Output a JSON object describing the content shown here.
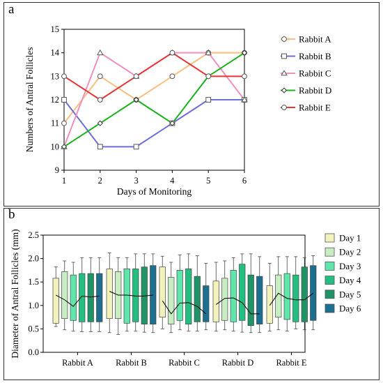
{
  "chart_data": [
    {
      "type": "line",
      "panel_label": "a",
      "xlabel": "Days of Monitoring",
      "ylabel": "Numbers of Antral Follicles",
      "x": [
        1,
        2,
        3,
        4,
        5,
        6
      ],
      "ylim": [
        9,
        15
      ],
      "yticks": [
        9,
        10,
        11,
        12,
        13,
        14,
        15
      ],
      "grid": false,
      "legend_position": "right",
      "series": [
        {
          "name": "Rabbit A",
          "color": "#f7bf80",
          "marker": "circle",
          "values": [
            11,
            13,
            12,
            13,
            14,
            14
          ]
        },
        {
          "name": "Rabbit B",
          "color": "#6d6ddb",
          "marker": "square",
          "values": [
            12,
            10,
            10,
            11,
            12,
            12
          ]
        },
        {
          "name": "Rabbit C",
          "color": "#f08fbf",
          "marker": "triangle",
          "values": [
            10,
            14,
            13,
            14,
            14,
            12
          ]
        },
        {
          "name": "Rabbit D",
          "color": "#19b319",
          "marker": "diamond",
          "values": [
            10,
            11,
            12,
            11,
            13,
            14
          ]
        },
        {
          "name": "Rabbit E",
          "color": "#e63535",
          "marker": "circle",
          "values": [
            13,
            12,
            13,
            14,
            13,
            13
          ]
        }
      ]
    },
    {
      "type": "box",
      "panel_label": "b",
      "xlabel": "",
      "ylabel": "Diameter of Antral Follicles (mm)",
      "categories": [
        "Rabbit A",
        "Rabbit B",
        "Rabbit C",
        "Rabbit D",
        "Rabbit E"
      ],
      "ylim": [
        0,
        2.5
      ],
      "yticks": [
        "0.0",
        "0.5",
        "1.0",
        "1.5",
        "2.0",
        "2.5"
      ],
      "grid": false,
      "legend_position": "right",
      "series": [
        {
          "name": "Day 1",
          "color": "#f2f2bd"
        },
        {
          "name": "Day 2",
          "color": "#c9edc2"
        },
        {
          "name": "Day 3",
          "color": "#5fe6ab"
        },
        {
          "name": "Day 4",
          "color": "#23bf80"
        },
        {
          "name": "Day 5",
          "color": "#1f9466"
        },
        {
          "name": "Day 6",
          "color": "#1c6f8f"
        }
      ],
      "boxes": [
        [
          [
            0.55,
            0.62,
            1.22,
            1.58,
            1.82
          ],
          [
            0.48,
            0.72,
            1.12,
            1.72,
            1.95
          ],
          [
            0.45,
            0.68,
            0.98,
            1.65,
            1.92
          ],
          [
            0.44,
            0.65,
            1.2,
            1.68,
            2.02
          ],
          [
            0.44,
            0.65,
            1.18,
            1.68,
            2.02
          ],
          [
            0.44,
            0.65,
            1.2,
            1.68,
            2.02
          ]
        ],
        [
          [
            0.42,
            0.72,
            1.3,
            1.78,
            2.12
          ],
          [
            0.38,
            0.72,
            1.22,
            1.72,
            2.02
          ],
          [
            0.45,
            0.62,
            1.22,
            1.78,
            2.02
          ],
          [
            0.45,
            0.65,
            1.2,
            1.78,
            2.1
          ],
          [
            0.43,
            0.6,
            1.2,
            1.82,
            2.1
          ],
          [
            0.42,
            0.6,
            1.22,
            1.85,
            2.1
          ]
        ],
        [
          [
            0.5,
            0.75,
            1.1,
            1.82,
            2.05
          ],
          [
            0.42,
            0.6,
            0.82,
            1.6,
            1.92
          ],
          [
            0.48,
            0.68,
            1.05,
            1.75,
            2.08
          ],
          [
            0.45,
            0.6,
            1.06,
            1.78,
            2.1
          ],
          [
            0.45,
            0.65,
            0.98,
            1.62,
            2.06
          ],
          [
            0.48,
            0.65,
            0.82,
            1.42,
            1.9
          ]
        ],
        [
          [
            0.45,
            0.65,
            1.02,
            1.52,
            1.92
          ],
          [
            0.48,
            0.68,
            1.15,
            1.58,
            1.95
          ],
          [
            0.45,
            0.65,
            1.16,
            1.75,
            2.02
          ],
          [
            0.43,
            0.68,
            1.06,
            1.88,
            2.1
          ],
          [
            0.42,
            0.57,
            0.82,
            1.65,
            2.1
          ],
          [
            0.42,
            0.6,
            0.82,
            1.62,
            2.04
          ]
        ],
        [
          [
            0.45,
            0.62,
            1.0,
            1.42,
            1.9
          ],
          [
            0.48,
            0.75,
            1.26,
            1.65,
            2.04
          ],
          [
            0.45,
            0.7,
            1.15,
            1.68,
            2.04
          ],
          [
            0.5,
            0.65,
            1.12,
            1.65,
            2.04
          ],
          [
            0.48,
            0.65,
            1.12,
            1.82,
            2.02
          ],
          [
            0.48,
            0.68,
            1.26,
            1.85,
            2.06
          ]
        ]
      ]
    }
  ]
}
